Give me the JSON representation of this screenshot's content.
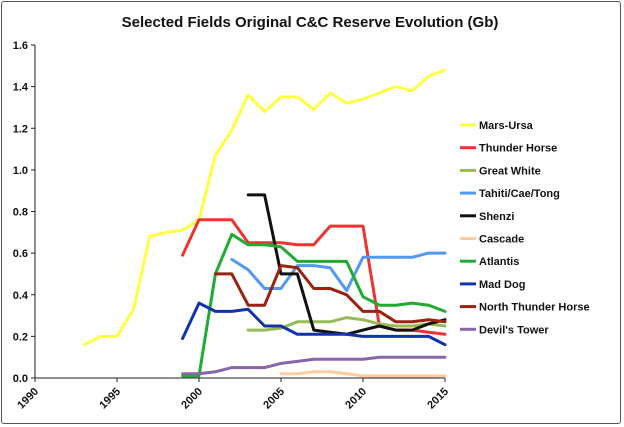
{
  "chart_data": {
    "type": "line",
    "title": "Selected Fields Original C&C Reserve Evolution (Gb)",
    "xlabel": "",
    "ylabel": "",
    "xlim": [
      1990,
      2015
    ],
    "ylim": [
      0,
      1.6
    ],
    "x_ticks": [
      1990,
      1995,
      2000,
      2005,
      2010,
      2015
    ],
    "y_ticks": [
      0.0,
      0.2,
      0.4,
      0.6,
      0.8,
      1.0,
      1.2,
      1.4,
      1.6
    ],
    "y_tick_labels": [
      "0.0",
      "0.2",
      "0.4",
      "0.6",
      "0.8",
      "1.0",
      "1.2",
      "1.4",
      "1.6"
    ],
    "grid": "none",
    "legend_position": "right",
    "series": [
      {
        "name": "Mars-Ursa",
        "color": "#FFFF44",
        "x": [
          1993,
          1994,
          1995,
          1996,
          1997,
          1998,
          1999,
          2000,
          2001,
          2002,
          2003,
          2004,
          2005,
          2006,
          2007,
          2008,
          2009,
          2010,
          2011,
          2012,
          2013,
          2014,
          2015
        ],
        "values": [
          0.16,
          0.2,
          0.2,
          0.33,
          0.68,
          0.7,
          0.71,
          0.76,
          1.07,
          1.19,
          1.36,
          1.28,
          1.35,
          1.35,
          1.29,
          1.37,
          1.32,
          1.34,
          1.37,
          1.4,
          1.38,
          1.45,
          1.48
        ]
      },
      {
        "name": "Thunder Horse",
        "color": "#EE3333",
        "x": [
          1999,
          2000,
          2001,
          2002,
          2003,
          2004,
          2005,
          2006,
          2007,
          2008,
          2009,
          2010,
          2011,
          2012,
          2013,
          2014,
          2015
        ],
        "values": [
          0.59,
          0.76,
          0.76,
          0.76,
          0.65,
          0.65,
          0.65,
          0.64,
          0.64,
          0.73,
          0.73,
          0.73,
          0.25,
          0.23,
          0.23,
          0.22,
          0.21
        ]
      },
      {
        "name": "Great White",
        "color": "#99BB55",
        "x": [
          2003,
          2004,
          2005,
          2006,
          2007,
          2008,
          2009,
          2010,
          2011,
          2012,
          2013,
          2014,
          2015
        ],
        "values": [
          0.23,
          0.23,
          0.24,
          0.27,
          0.27,
          0.27,
          0.29,
          0.28,
          0.26,
          0.25,
          0.25,
          0.26,
          0.25
        ]
      },
      {
        "name": "Tahiti/Cae/Tong",
        "color": "#5599EE",
        "x": [
          2002,
          2003,
          2004,
          2005,
          2006,
          2007,
          2008,
          2009,
          2010,
          2011,
          2012,
          2013,
          2014,
          2015
        ],
        "values": [
          0.57,
          0.52,
          0.43,
          0.43,
          0.54,
          0.54,
          0.53,
          0.42,
          0.58,
          0.58,
          0.58,
          0.58,
          0.6,
          0.6
        ]
      },
      {
        "name": "Shenzi",
        "color": "#111111",
        "x": [
          2003,
          2004,
          2005,
          2006,
          2007,
          2008,
          2009,
          2010,
          2011,
          2012,
          2013,
          2014,
          2015
        ],
        "values": [
          0.88,
          0.88,
          0.5,
          0.5,
          0.23,
          0.22,
          0.21,
          0.23,
          0.25,
          0.23,
          0.23,
          0.26,
          0.28
        ]
      },
      {
        "name": "Cascade",
        "color": "#FFCCA0",
        "x": [
          2005,
          2006,
          2007,
          2008,
          2009,
          2010,
          2011,
          2012,
          2013,
          2014,
          2015
        ],
        "values": [
          0.02,
          0.02,
          0.03,
          0.03,
          0.02,
          0.01,
          0.01,
          0.01,
          0.01,
          0.01,
          0.01
        ]
      },
      {
        "name": "Atlantis",
        "color": "#22AA33",
        "x": [
          1999,
          2000,
          2001,
          2002,
          2003,
          2004,
          2005,
          2006,
          2007,
          2008,
          2009,
          2010,
          2011,
          2012,
          2013,
          2014,
          2015
        ],
        "values": [
          0.01,
          0.01,
          0.5,
          0.69,
          0.64,
          0.64,
          0.63,
          0.56,
          0.56,
          0.56,
          0.56,
          0.39,
          0.35,
          0.35,
          0.36,
          0.35,
          0.32
        ]
      },
      {
        "name": "Mad Dog",
        "color": "#1133AA",
        "x": [
          1999,
          2000,
          2001,
          2002,
          2003,
          2004,
          2005,
          2006,
          2007,
          2008,
          2009,
          2010,
          2011,
          2012,
          2013,
          2014,
          2015
        ],
        "values": [
          0.19,
          0.36,
          0.32,
          0.32,
          0.33,
          0.25,
          0.25,
          0.21,
          0.21,
          0.21,
          0.21,
          0.2,
          0.2,
          0.2,
          0.2,
          0.2,
          0.16
        ]
      },
      {
        "name": "North Thunder Horse",
        "color": "#992211",
        "x": [
          2001,
          2002,
          2003,
          2004,
          2005,
          2006,
          2007,
          2008,
          2009,
          2010,
          2011,
          2012,
          2013,
          2014,
          2015
        ],
        "values": [
          0.5,
          0.5,
          0.35,
          0.35,
          0.54,
          0.53,
          0.43,
          0.43,
          0.4,
          0.32,
          0.32,
          0.27,
          0.27,
          0.28,
          0.27
        ]
      },
      {
        "name": "Devil's Tower",
        "color": "#8866AA",
        "x": [
          1999,
          2000,
          2001,
          2002,
          2003,
          2004,
          2005,
          2006,
          2007,
          2008,
          2009,
          2010,
          2011,
          2012,
          2013,
          2014,
          2015
        ],
        "values": [
          0.02,
          0.02,
          0.03,
          0.05,
          0.05,
          0.05,
          0.07,
          0.08,
          0.09,
          0.09,
          0.09,
          0.09,
          0.1,
          0.1,
          0.1,
          0.1,
          0.1
        ]
      }
    ]
  }
}
